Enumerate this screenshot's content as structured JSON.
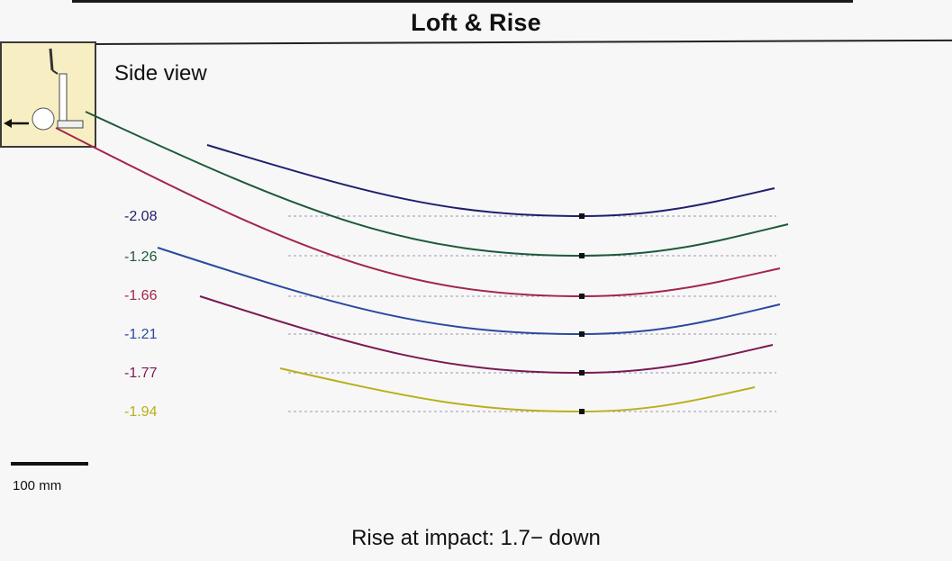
{
  "chart_data": {
    "type": "line",
    "title": "Loft & Rise",
    "subtitle": "Side view",
    "xlabel": "",
    "ylabel": "",
    "series": [
      {
        "name": "stroke-1",
        "label": "-2.08",
        "color": "#1f1f6e"
      },
      {
        "name": "stroke-2",
        "label": "-1.26",
        "color": "#1d5a3a"
      },
      {
        "name": "stroke-3",
        "label": "-1.66",
        "color": "#a3264a"
      },
      {
        "name": "stroke-4",
        "label": "-1.21",
        "color": "#2a4aa0"
      },
      {
        "name": "stroke-5",
        "label": "-1.77",
        "color": "#7a1a55"
      },
      {
        "name": "stroke-6",
        "label": "-1.94",
        "color": "#b8b01a"
      }
    ],
    "scale_bar": "100 mm",
    "annotation": "Rise at impact: 1.7− down"
  }
}
